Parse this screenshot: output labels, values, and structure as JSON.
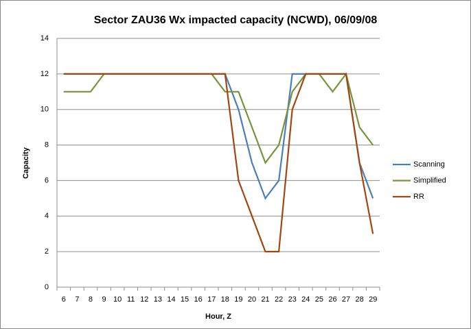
{
  "chart_data": {
    "type": "line",
    "title": "Sector ZAU36 Wx impacted capacity (NCWD), 06/09/08",
    "x_label": "Hour, Z",
    "y_label": "Capacity",
    "categories": [
      "6",
      "7",
      "8",
      "9",
      "10",
      "11",
      "12",
      "13",
      "14",
      "15",
      "16",
      "17",
      "18",
      "19",
      "20",
      "21",
      "22",
      "23",
      "24",
      "25",
      "26",
      "27",
      "28",
      "29"
    ],
    "series": [
      {
        "name": "Scanning",
        "color": "#4a7ebb",
        "values": [
          12,
          12,
          12,
          12,
          12,
          12,
          12,
          12,
          12,
          12,
          12,
          12,
          12,
          10,
          7,
          5,
          6,
          12,
          12,
          12,
          12,
          12,
          7,
          5
        ]
      },
      {
        "name": "Simplified",
        "color": "#77933c",
        "values": [
          11,
          11,
          11,
          12,
          12,
          12,
          12,
          12,
          12,
          12,
          12,
          12,
          11,
          11,
          9,
          7,
          8,
          11,
          12,
          12,
          11,
          12,
          9,
          8
        ]
      },
      {
        "name": "RR",
        "color": "#a0460e",
        "values": [
          12,
          12,
          12,
          12,
          12,
          12,
          12,
          12,
          12,
          12,
          12,
          12,
          12,
          6,
          4,
          2,
          2,
          10,
          12,
          12,
          12,
          12,
          7,
          3
        ]
      }
    ],
    "ylim": [
      0,
      14
    ],
    "yticks": [
      0,
      2,
      4,
      6,
      8,
      10,
      12,
      14
    ],
    "grid": true,
    "legend": "right"
  }
}
